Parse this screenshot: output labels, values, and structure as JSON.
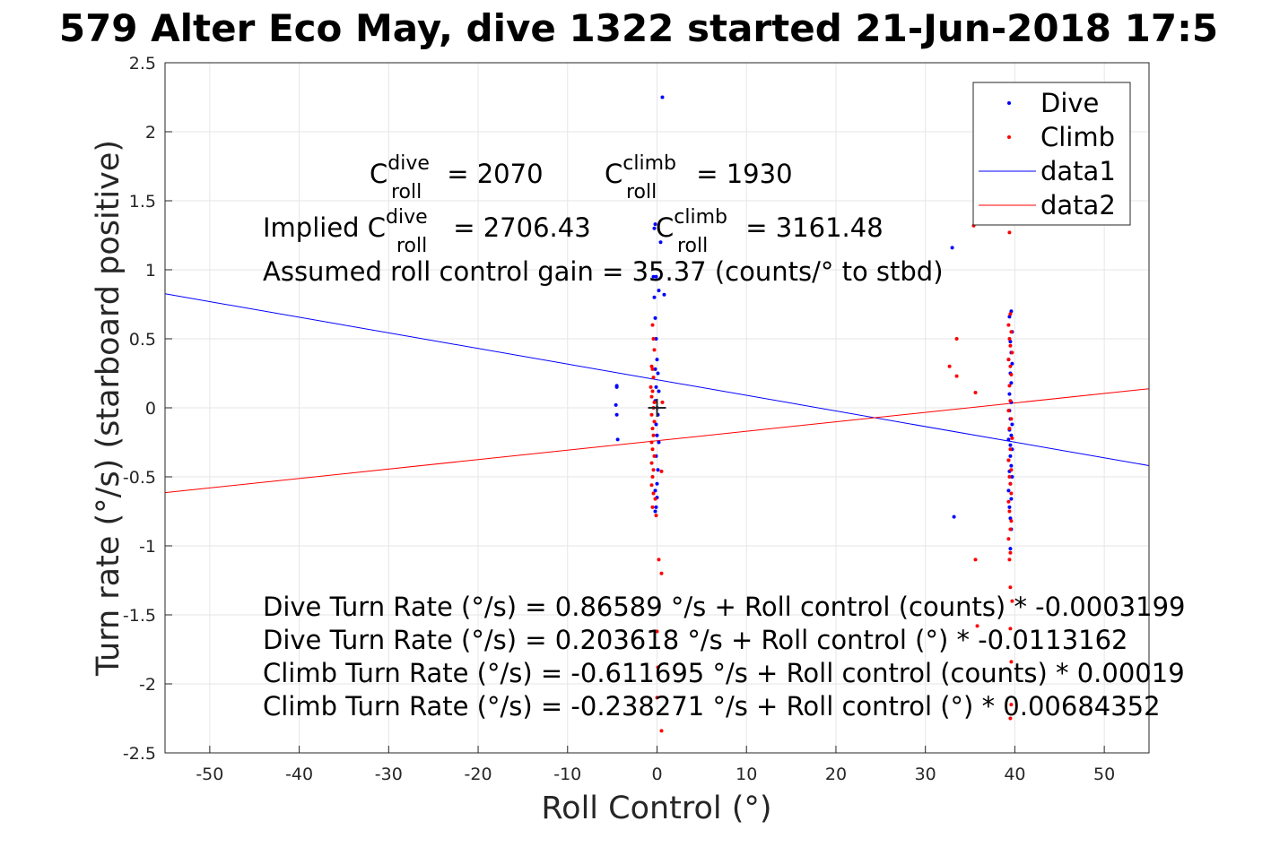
{
  "chart_data": {
    "type": "scatter",
    "title": "579 Alter Eco May, dive 1322 started 21-Jun-2018 17:5",
    "xlabel": "Roll Control (°)",
    "ylabel": "Turn rate (°/s) (starboard positive)",
    "xlim": [
      -55,
      55
    ],
    "ylim": [
      -2.5,
      2.5
    ],
    "xticks": [
      -50,
      -40,
      -30,
      -20,
      -10,
      0,
      10,
      20,
      30,
      40,
      50
    ],
    "yticks": [
      -2.5,
      -2,
      -1.5,
      -1,
      -0.5,
      0,
      0.5,
      1,
      1.5,
      2,
      2.5
    ],
    "xtick_labels": [
      "-50",
      "-40",
      "-30",
      "-20",
      "-10",
      "0",
      "10",
      "20",
      "30",
      "40",
      "50"
    ],
    "ytick_labels": [
      "-2.5",
      "-2",
      "-1.5",
      "-1",
      "-0.5",
      "0",
      "0.5",
      "1",
      "1.5",
      "2",
      "2.5"
    ],
    "grid": true,
    "legend_position": "top-right",
    "colors": {
      "dive": "#0000ff",
      "climb": "#ff0000",
      "text": "#000000",
      "grid": "#e6e6e6",
      "axis": "#262626"
    },
    "series": [
      {
        "name": "Dive",
        "kind": "points",
        "color": "#0000ff",
        "points": [
          [
            0.6,
            2.25
          ],
          [
            -0.2,
            1.33
          ],
          [
            -0.3,
            1.3
          ],
          [
            0.4,
            1.2
          ],
          [
            -0.4,
            0.95
          ],
          [
            -0.1,
            0.95
          ],
          [
            0.2,
            0.85
          ],
          [
            0.8,
            0.82
          ],
          [
            -0.3,
            0.8
          ],
          [
            -0.2,
            0.65
          ],
          [
            -0.1,
            0.5
          ],
          [
            0.0,
            0.35
          ],
          [
            -0.2,
            0.28
          ],
          [
            0.1,
            0.25
          ],
          [
            -0.1,
            0.15
          ],
          [
            0.2,
            0.12
          ],
          [
            -0.2,
            0.05
          ],
          [
            0.0,
            0.0
          ],
          [
            0.1,
            -0.05
          ],
          [
            -0.1,
            -0.12
          ],
          [
            0.0,
            -0.2
          ],
          [
            0.2,
            -0.25
          ],
          [
            -0.1,
            -0.35
          ],
          [
            0.1,
            -0.45
          ],
          [
            0.0,
            -0.55
          ],
          [
            -0.2,
            -0.6
          ],
          [
            0.0,
            -0.65
          ],
          [
            -0.1,
            -0.72
          ],
          [
            -0.2,
            -0.75
          ],
          [
            -4.5,
            0.16
          ],
          [
            -4.5,
            0.15
          ],
          [
            -4.6,
            0.02
          ],
          [
            -4.5,
            -0.05
          ],
          [
            -4.4,
            -0.23
          ],
          [
            33.0,
            1.16
          ],
          [
            33.2,
            -0.79
          ],
          [
            39.6,
            0.7
          ],
          [
            39.4,
            0.66
          ],
          [
            39.7,
            0.55
          ],
          [
            39.5,
            0.48
          ],
          [
            39.6,
            0.4
          ],
          [
            39.3,
            0.35
          ],
          [
            39.7,
            0.32
          ],
          [
            39.5,
            0.25
          ],
          [
            39.6,
            0.18
          ],
          [
            39.4,
            0.1
          ],
          [
            39.6,
            0.04
          ],
          [
            39.4,
            -0.02
          ],
          [
            39.5,
            -0.08
          ],
          [
            39.7,
            -0.12
          ],
          [
            39.4,
            -0.16
          ],
          [
            39.6,
            -0.2
          ],
          [
            39.3,
            -0.23
          ],
          [
            39.5,
            -0.27
          ],
          [
            39.7,
            -0.3
          ],
          [
            39.5,
            -0.35
          ],
          [
            39.3,
            -0.38
          ],
          [
            39.6,
            -0.42
          ],
          [
            39.4,
            -0.46
          ],
          [
            39.7,
            -0.5
          ],
          [
            39.5,
            -0.55
          ],
          [
            39.3,
            -0.6
          ],
          [
            39.6,
            -0.66
          ],
          [
            39.4,
            -0.72
          ],
          [
            39.5,
            -0.8
          ],
          [
            39.6,
            -0.88
          ],
          [
            39.5,
            -1.02
          ]
        ]
      },
      {
        "name": "Climb",
        "kind": "points",
        "color": "#ff0000",
        "points": [
          [
            -0.5,
            0.6
          ],
          [
            -0.4,
            0.5
          ],
          [
            -0.3,
            0.42
          ],
          [
            -0.6,
            0.3
          ],
          [
            -0.5,
            0.28
          ],
          [
            -0.4,
            0.22
          ],
          [
            -0.7,
            0.15
          ],
          [
            -0.5,
            0.12
          ],
          [
            -0.6,
            0.08
          ],
          [
            -0.3,
            0.04
          ],
          [
            0.6,
            0.04
          ],
          [
            -0.4,
            0.0
          ],
          [
            -0.6,
            -0.05
          ],
          [
            -0.3,
            -0.1
          ],
          [
            -0.5,
            -0.15
          ],
          [
            -0.4,
            -0.2
          ],
          [
            -0.6,
            -0.25
          ],
          [
            -0.5,
            -0.3
          ],
          [
            -0.3,
            -0.35
          ],
          [
            -0.6,
            -0.4
          ],
          [
            -0.4,
            -0.45
          ],
          [
            0.5,
            -0.46
          ],
          [
            -0.5,
            -0.5
          ],
          [
            -0.6,
            -0.56
          ],
          [
            -0.4,
            -0.62
          ],
          [
            -0.2,
            -0.66
          ],
          [
            -0.5,
            -0.72
          ],
          [
            -0.1,
            -0.78
          ],
          [
            0.2,
            -1.1
          ],
          [
            0.5,
            -1.2
          ],
          [
            0.0,
            -1.62
          ],
          [
            0.1,
            -1.88
          ],
          [
            0.0,
            -2.1
          ],
          [
            0.5,
            -2.34
          ],
          [
            33.5,
            0.5
          ],
          [
            32.7,
            0.3
          ],
          [
            33.5,
            0.23
          ],
          [
            35.6,
            0.11
          ],
          [
            35.6,
            -1.1
          ],
          [
            35.8,
            -1.58
          ],
          [
            35.4,
            1.32
          ],
          [
            39.4,
            1.27
          ],
          [
            39.5,
            0.68
          ],
          [
            39.3,
            0.6
          ],
          [
            39.6,
            0.55
          ],
          [
            39.4,
            0.5
          ],
          [
            39.5,
            0.45
          ],
          [
            39.7,
            0.4
          ],
          [
            39.3,
            0.35
          ],
          [
            39.5,
            0.3
          ],
          [
            39.6,
            0.24
          ],
          [
            39.4,
            0.16
          ],
          [
            39.5,
            0.05
          ],
          [
            39.3,
            -0.02
          ],
          [
            39.6,
            -0.08
          ],
          [
            39.4,
            -0.15
          ],
          [
            39.7,
            -0.22
          ],
          [
            39.5,
            -0.3
          ],
          [
            39.3,
            -0.38
          ],
          [
            39.6,
            -0.45
          ],
          [
            39.4,
            -0.5
          ],
          [
            39.5,
            -0.55
          ],
          [
            39.6,
            -0.62
          ],
          [
            39.3,
            -0.68
          ],
          [
            39.4,
            -0.75
          ],
          [
            39.6,
            -0.82
          ],
          [
            39.5,
            -0.88
          ],
          [
            39.3,
            -0.95
          ],
          [
            39.5,
            -1.05
          ],
          [
            39.4,
            -1.1
          ],
          [
            39.5,
            -1.3
          ],
          [
            39.7,
            -1.4
          ],
          [
            39.5,
            -1.6
          ],
          [
            39.6,
            -1.84
          ],
          [
            39.6,
            -2.15
          ],
          [
            39.5,
            -2.25
          ]
        ]
      },
      {
        "name": "data1",
        "kind": "line",
        "color": "#0000ff",
        "intercept": 0.203618,
        "slope": -0.0113162
      },
      {
        "name": "data2",
        "kind": "line",
        "color": "#ff0000",
        "intercept": -0.238271,
        "slope": 0.00684352
      }
    ],
    "marker": {
      "symbol": "+",
      "x": 0,
      "y": 0,
      "color": "#262626"
    },
    "legend": [
      {
        "label": "Dive",
        "kind": "point",
        "color": "#0000ff"
      },
      {
        "label": "Climb",
        "kind": "point",
        "color": "#ff0000"
      },
      {
        "label": "data1",
        "kind": "line",
        "color": "#0000ff"
      },
      {
        "label": "data2",
        "kind": "line",
        "color": "#ff0000"
      }
    ],
    "annotations": {
      "c_dive_main": "C",
      "c_dive_sup": "dive",
      "c_dive_sub": "roll",
      "c_dive_value": " = 2070",
      "c_climb_main": "C",
      "c_climb_sup": "climb",
      "c_climb_sub": "roll",
      "c_climb_value": " = 1930",
      "implied_prefix": "Implied C",
      "implied_dive_sup": "dive",
      "implied_dive_sub": "roll",
      "implied_dive_value": " = 2706.43",
      "implied_climb_main": "C",
      "implied_climb_sup": "climb",
      "implied_climb_sub": "roll",
      "implied_climb_value": " = 3161.48",
      "gain": "Assumed roll control gain = 35.37 (counts/° to stbd)",
      "eq1": "Dive Turn Rate (°/s) = 0.86589 °/s + Roll control (counts) * -0.0003199",
      "eq2": "Dive Turn Rate (°/s) = 0.203618 °/s + Roll control (°) * -0.0113162",
      "eq3": "Climb Turn Rate (°/s) = -0.611695 °/s + Roll control (counts) * 0.00019",
      "eq4": "Climb Turn Rate (°/s) = -0.238271 °/s + Roll control (°) * 0.00684352"
    }
  }
}
